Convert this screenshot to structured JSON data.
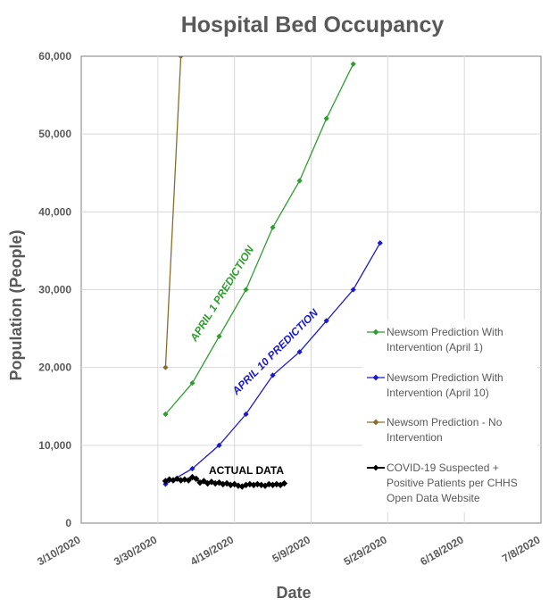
{
  "chart_data": {
    "type": "line",
    "title": "Hospital Bed Occupancy",
    "xlabel": "Date",
    "ylabel": "Population (People)",
    "ylim": [
      0,
      60000
    ],
    "yticks": [
      0,
      10000,
      20000,
      30000,
      40000,
      50000,
      60000
    ],
    "ytick_labels": [
      "0",
      "10,000",
      "20,000",
      "30,000",
      "40,000",
      "50,000",
      "60,000"
    ],
    "xlim": [
      "2020-03-10",
      "2020-07-08"
    ],
    "xticks": [
      "2020-03-10",
      "2020-03-30",
      "2020-04-19",
      "2020-05-09",
      "2020-05-29",
      "2020-06-18",
      "2020-07-08"
    ],
    "xtick_labels": [
      "3/10/2020",
      "3/30/2020",
      "4/19/2020",
      "5/9/2020",
      "5/29/2020",
      "6/18/2020",
      "7/8/2020"
    ],
    "grid": true,
    "legend_position": "right",
    "series": [
      {
        "name": "Newsom Prediction With Intervention (April 1)",
        "legend_lines": [
          "Newsom Prediction With",
          "Intervention (April 1)"
        ],
        "color": "#2e9e2e",
        "x": [
          "2020-04-01",
          "2020-04-08",
          "2020-04-15",
          "2020-04-22",
          "2020-04-29",
          "2020-05-06",
          "2020-05-13",
          "2020-05-20"
        ],
        "y": [
          14000,
          18000,
          24000,
          30000,
          38000,
          44000,
          52000,
          59000
        ]
      },
      {
        "name": "Newsom Prediction With Intervention (April 10)",
        "legend_lines": [
          "Newsom Prediction With",
          "Intervention (April 10)"
        ],
        "color": "#1a1acc",
        "x": [
          "2020-04-01",
          "2020-04-08",
          "2020-04-15",
          "2020-04-22",
          "2020-04-29",
          "2020-05-06",
          "2020-05-13",
          "2020-05-20",
          "2020-05-27"
        ],
        "y": [
          5000,
          7000,
          10000,
          14000,
          19000,
          22000,
          26000,
          30000,
          36000
        ]
      },
      {
        "name": "Newsom Prediction - No Intervention",
        "legend_lines": [
          "Newsom Prediction - No",
          "Intervention"
        ],
        "color": "#8b6d2a",
        "x": [
          "2020-04-01",
          "2020-04-05"
        ],
        "y": [
          20000,
          60000
        ]
      },
      {
        "name": "COVID-19 Suspected + Positive Patients per CHHS Open Data Website",
        "legend_lines": [
          "COVID-19 Suspected +",
          "Positive Patients per CHHS",
          "Open Data Website"
        ],
        "color": "#000000",
        "x": [
          "2020-04-01",
          "2020-04-02",
          "2020-04-03",
          "2020-04-04",
          "2020-04-05",
          "2020-04-06",
          "2020-04-07",
          "2020-04-08",
          "2020-04-09",
          "2020-04-10",
          "2020-04-11",
          "2020-04-12",
          "2020-04-13",
          "2020-04-14",
          "2020-04-15",
          "2020-04-16",
          "2020-04-17",
          "2020-04-18",
          "2020-04-19",
          "2020-04-20",
          "2020-04-21",
          "2020-04-22",
          "2020-04-23",
          "2020-04-24",
          "2020-04-25",
          "2020-04-26",
          "2020-04-27",
          "2020-04-28",
          "2020-04-29",
          "2020-04-30",
          "2020-05-01",
          "2020-05-02"
        ],
        "y": [
          5400,
          5600,
          5500,
          5700,
          5500,
          5600,
          5500,
          5900,
          5700,
          5200,
          5400,
          5100,
          5300,
          5100,
          5200,
          5000,
          5100,
          4900,
          5000,
          4800,
          4700,
          4900,
          5000,
          4900,
          5000,
          4900,
          4800,
          5000,
          4900,
          5000,
          4900,
          5100
        ]
      }
    ],
    "annotations": [
      {
        "text": "APRIL 1 PREDICTION",
        "color": "#2e9e2e"
      },
      {
        "text": "APRIL 10 PREDICTION",
        "color": "#1a1acc"
      },
      {
        "text": "ACTUAL DATA",
        "color": "#000000"
      }
    ]
  }
}
